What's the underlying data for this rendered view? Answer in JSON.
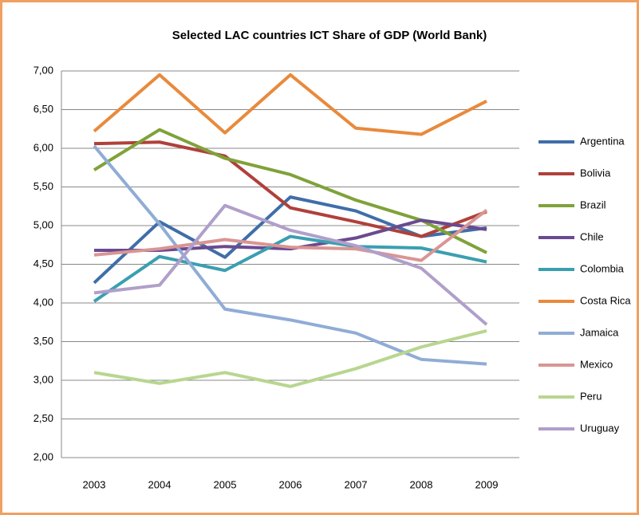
{
  "chart_data": {
    "type": "line",
    "title": "Selected LAC countries ICT Share of GDP (World Bank)",
    "categories": [
      "2003",
      "2004",
      "2005",
      "2006",
      "2007",
      "2008",
      "2009"
    ],
    "ylim": [
      2,
      7
    ],
    "yticks": [
      {
        "value": 2,
        "label": "2,00"
      },
      {
        "value": 2.5,
        "label": "2,50"
      },
      {
        "value": 3,
        "label": "3,00"
      },
      {
        "value": 3.5,
        "label": "3,50"
      },
      {
        "value": 4,
        "label": "4,00"
      },
      {
        "value": 4.5,
        "label": "4,50"
      },
      {
        "value": 5,
        "label": "5,00"
      },
      {
        "value": 5.5,
        "label": "5,50"
      },
      {
        "value": 6,
        "label": "6,00"
      },
      {
        "value": 6.5,
        "label": "6,50"
      },
      {
        "value": 7,
        "label": "7,00"
      }
    ],
    "grid": true,
    "legend": "right",
    "series": [
      {
        "name": "Argentina",
        "color": "#3f6ea8",
        "values": [
          4.26,
          5.05,
          4.59,
          5.37,
          5.19,
          4.86,
          4.97
        ]
      },
      {
        "name": "Bolivia",
        "color": "#b0403a",
        "values": [
          6.06,
          6.08,
          5.9,
          5.23,
          5.05,
          4.86,
          5.18
        ]
      },
      {
        "name": "Brazil",
        "color": "#7fa23a",
        "values": [
          5.72,
          6.24,
          5.87,
          5.66,
          5.33,
          5.07,
          4.65
        ]
      },
      {
        "name": "Chile",
        "color": "#6a4a90",
        "values": [
          4.68,
          4.68,
          4.73,
          4.7,
          4.84,
          5.07,
          4.95
        ]
      },
      {
        "name": "Colombia",
        "color": "#3a9fb0",
        "values": [
          4.02,
          4.6,
          4.42,
          4.86,
          4.73,
          4.71,
          4.53
        ]
      },
      {
        "name": "Costa Rica",
        "color": "#e88a3c",
        "values": [
          6.22,
          6.95,
          6.2,
          6.95,
          6.26,
          6.18,
          6.61
        ]
      },
      {
        "name": "Jamaica",
        "color": "#90acd6",
        "values": [
          6.03,
          5.02,
          3.92,
          3.78,
          3.61,
          3.27,
          3.21
        ]
      },
      {
        "name": "Mexico",
        "color": "#d99593",
        "values": [
          4.62,
          4.7,
          4.82,
          4.72,
          4.7,
          4.55,
          5.2
        ]
      },
      {
        "name": "Peru",
        "color": "#b8d68f",
        "values": [
          3.1,
          2.96,
          3.1,
          2.92,
          3.15,
          3.43,
          3.64
        ]
      },
      {
        "name": "Uruguay",
        "color": "#b09fca",
        "values": [
          4.13,
          4.23,
          5.26,
          4.94,
          4.74,
          4.45,
          3.72
        ]
      }
    ]
  }
}
